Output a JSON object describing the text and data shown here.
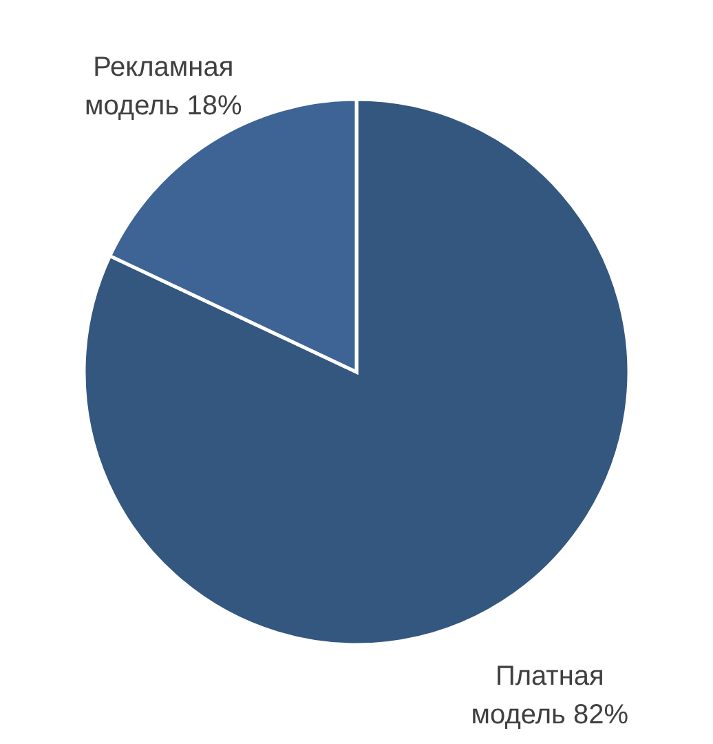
{
  "chart_data": {
    "type": "pie",
    "categories": [
      "Платная модель",
      "Рекламная модель"
    ],
    "values": [
      82,
      18
    ],
    "colors": [
      "#34577f",
      "#3d6494"
    ],
    "value_labels": [
      "82%",
      "18%"
    ]
  }
}
